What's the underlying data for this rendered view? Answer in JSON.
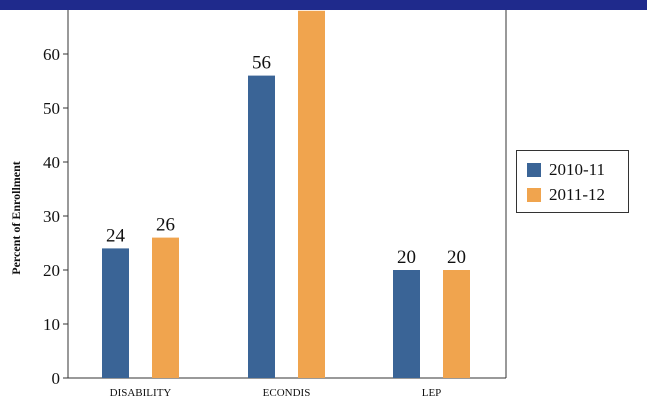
{
  "chart_data": {
    "type": "bar",
    "title": "",
    "xlabel": "",
    "ylabel": "Percent of Enrollment",
    "categories": [
      "DISABILITY",
      "ECONDIS",
      "LEP"
    ],
    "series": [
      {
        "name": "2010-11",
        "color": "#3a6496",
        "values": [
          24,
          56,
          20
        ],
        "labels": [
          "24",
          "56",
          "20"
        ]
      },
      {
        "name": "2011-12",
        "color": "#f0a44e",
        "values": [
          26,
          68,
          20
        ],
        "labels": [
          "26",
          "",
          "20"
        ]
      }
    ],
    "yticks": [
      "0",
      "10",
      "20",
      "30",
      "40",
      "50",
      "60"
    ],
    "ylim": [
      0,
      70
    ],
    "grid": false,
    "legend_position": "right"
  }
}
